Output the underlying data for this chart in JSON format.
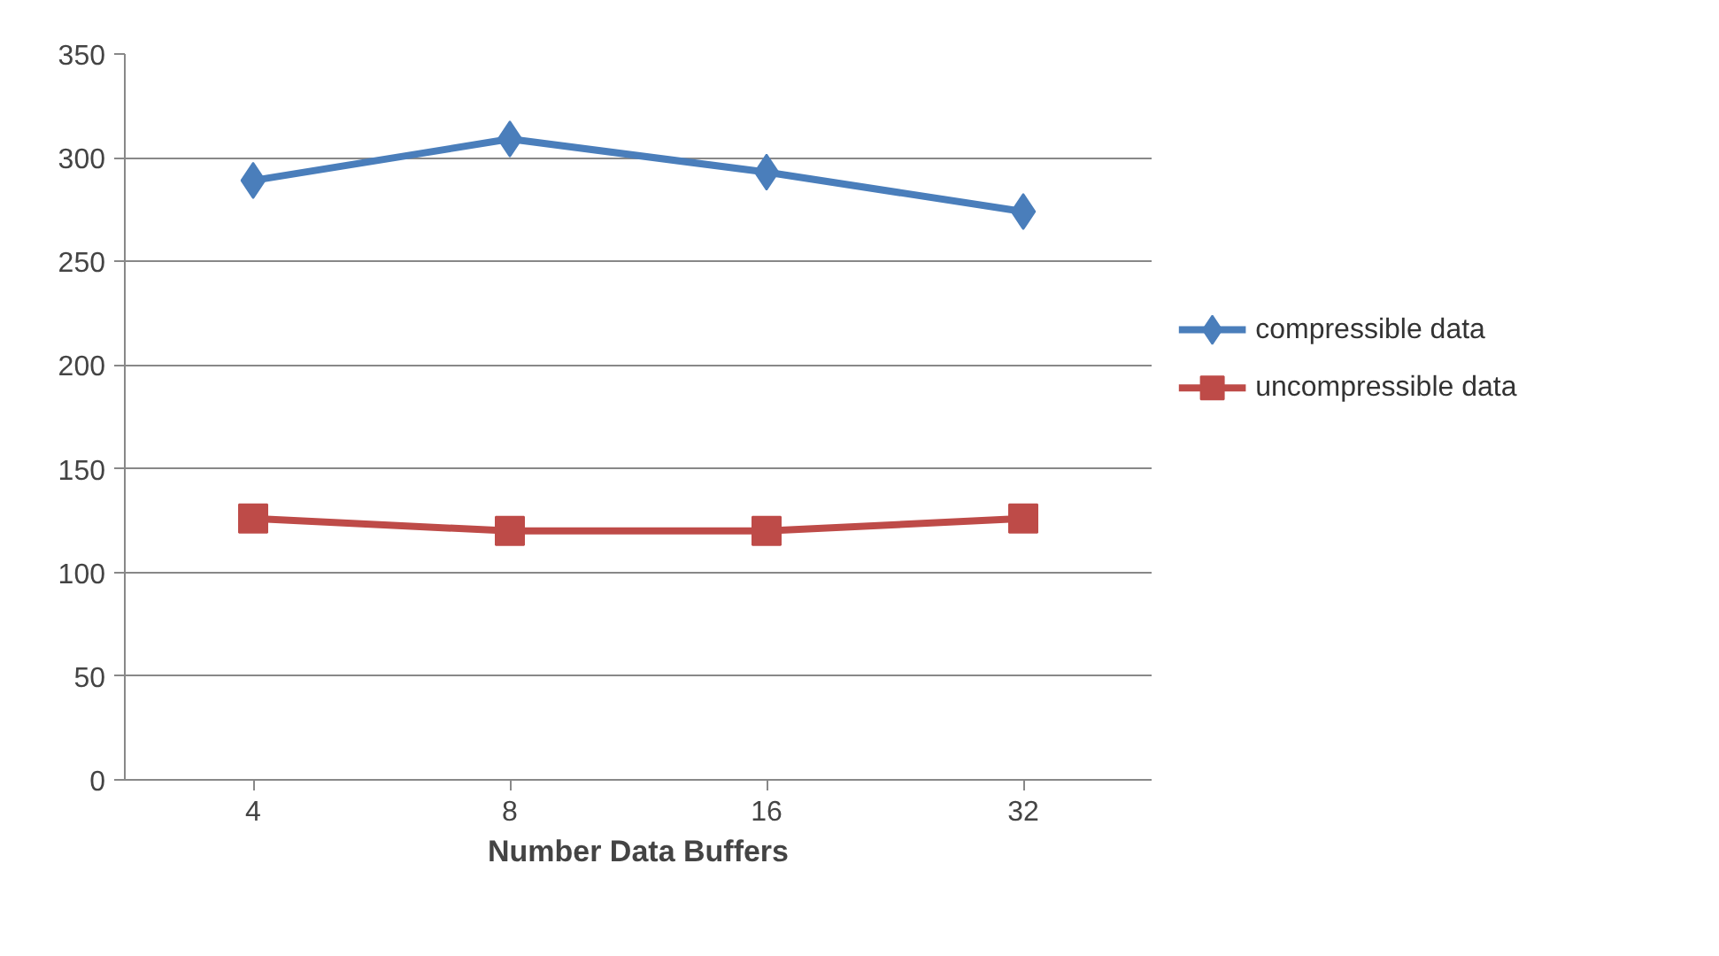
{
  "chart_data": {
    "type": "line",
    "xlabel": "Number Data Buffers",
    "categories": [
      "4",
      "8",
      "16",
      "32"
    ],
    "series": [
      {
        "name": "compressible data",
        "color": "#4a7ebb",
        "marker": "diamond",
        "values": [
          289,
          309,
          293,
          274
        ]
      },
      {
        "name": "uncompressible data",
        "color": "#be4b48",
        "marker": "square",
        "values": [
          126,
          120,
          120,
          126
        ]
      }
    ],
    "ylim": [
      0,
      350
    ],
    "yticks": [
      0,
      50,
      100,
      150,
      200,
      250,
      300,
      350
    ],
    "grid": "y",
    "legend": "right",
    "line_style": "solid"
  }
}
